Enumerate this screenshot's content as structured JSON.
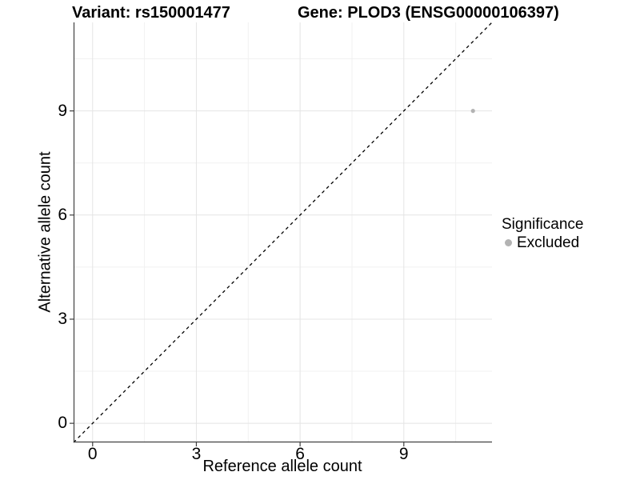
{
  "title": {
    "left": "Variant: rs150001477",
    "right": "Gene: PLOD3 (ENSG00000106397)"
  },
  "chart_data": {
    "type": "scatter",
    "xlabel": "Reference allele count",
    "ylabel": "Alternative allele count",
    "xlim": [
      -0.55,
      11.55
    ],
    "ylim": [
      -0.55,
      11.55
    ],
    "xticks": [
      0,
      3,
      6,
      9
    ],
    "yticks": [
      0,
      3,
      6,
      9
    ],
    "xticklabels": [
      "0",
      "3",
      "6",
      "9"
    ],
    "yticklabels": [
      "0",
      "3",
      "6",
      "9"
    ],
    "minor_breaks": [
      1.5,
      4.5,
      7.5,
      10.5
    ],
    "grid": true,
    "identity_line": {
      "intercept": 0,
      "slope": 1,
      "style": "dashed",
      "color": "#000000"
    },
    "points": [
      {
        "x": 11,
        "y": 9,
        "significance": "Excluded"
      }
    ],
    "legend": {
      "title": "Significance",
      "position": "right",
      "items": [
        {
          "label": "Excluded",
          "color": "#b3b3b3"
        }
      ]
    },
    "colors": {
      "point": "#b3b3b3",
      "grid_major": "#e4e4e4",
      "grid_minor": "#f1f1f1",
      "axis_line": "#404040",
      "tick_mark": "#404040"
    }
  }
}
